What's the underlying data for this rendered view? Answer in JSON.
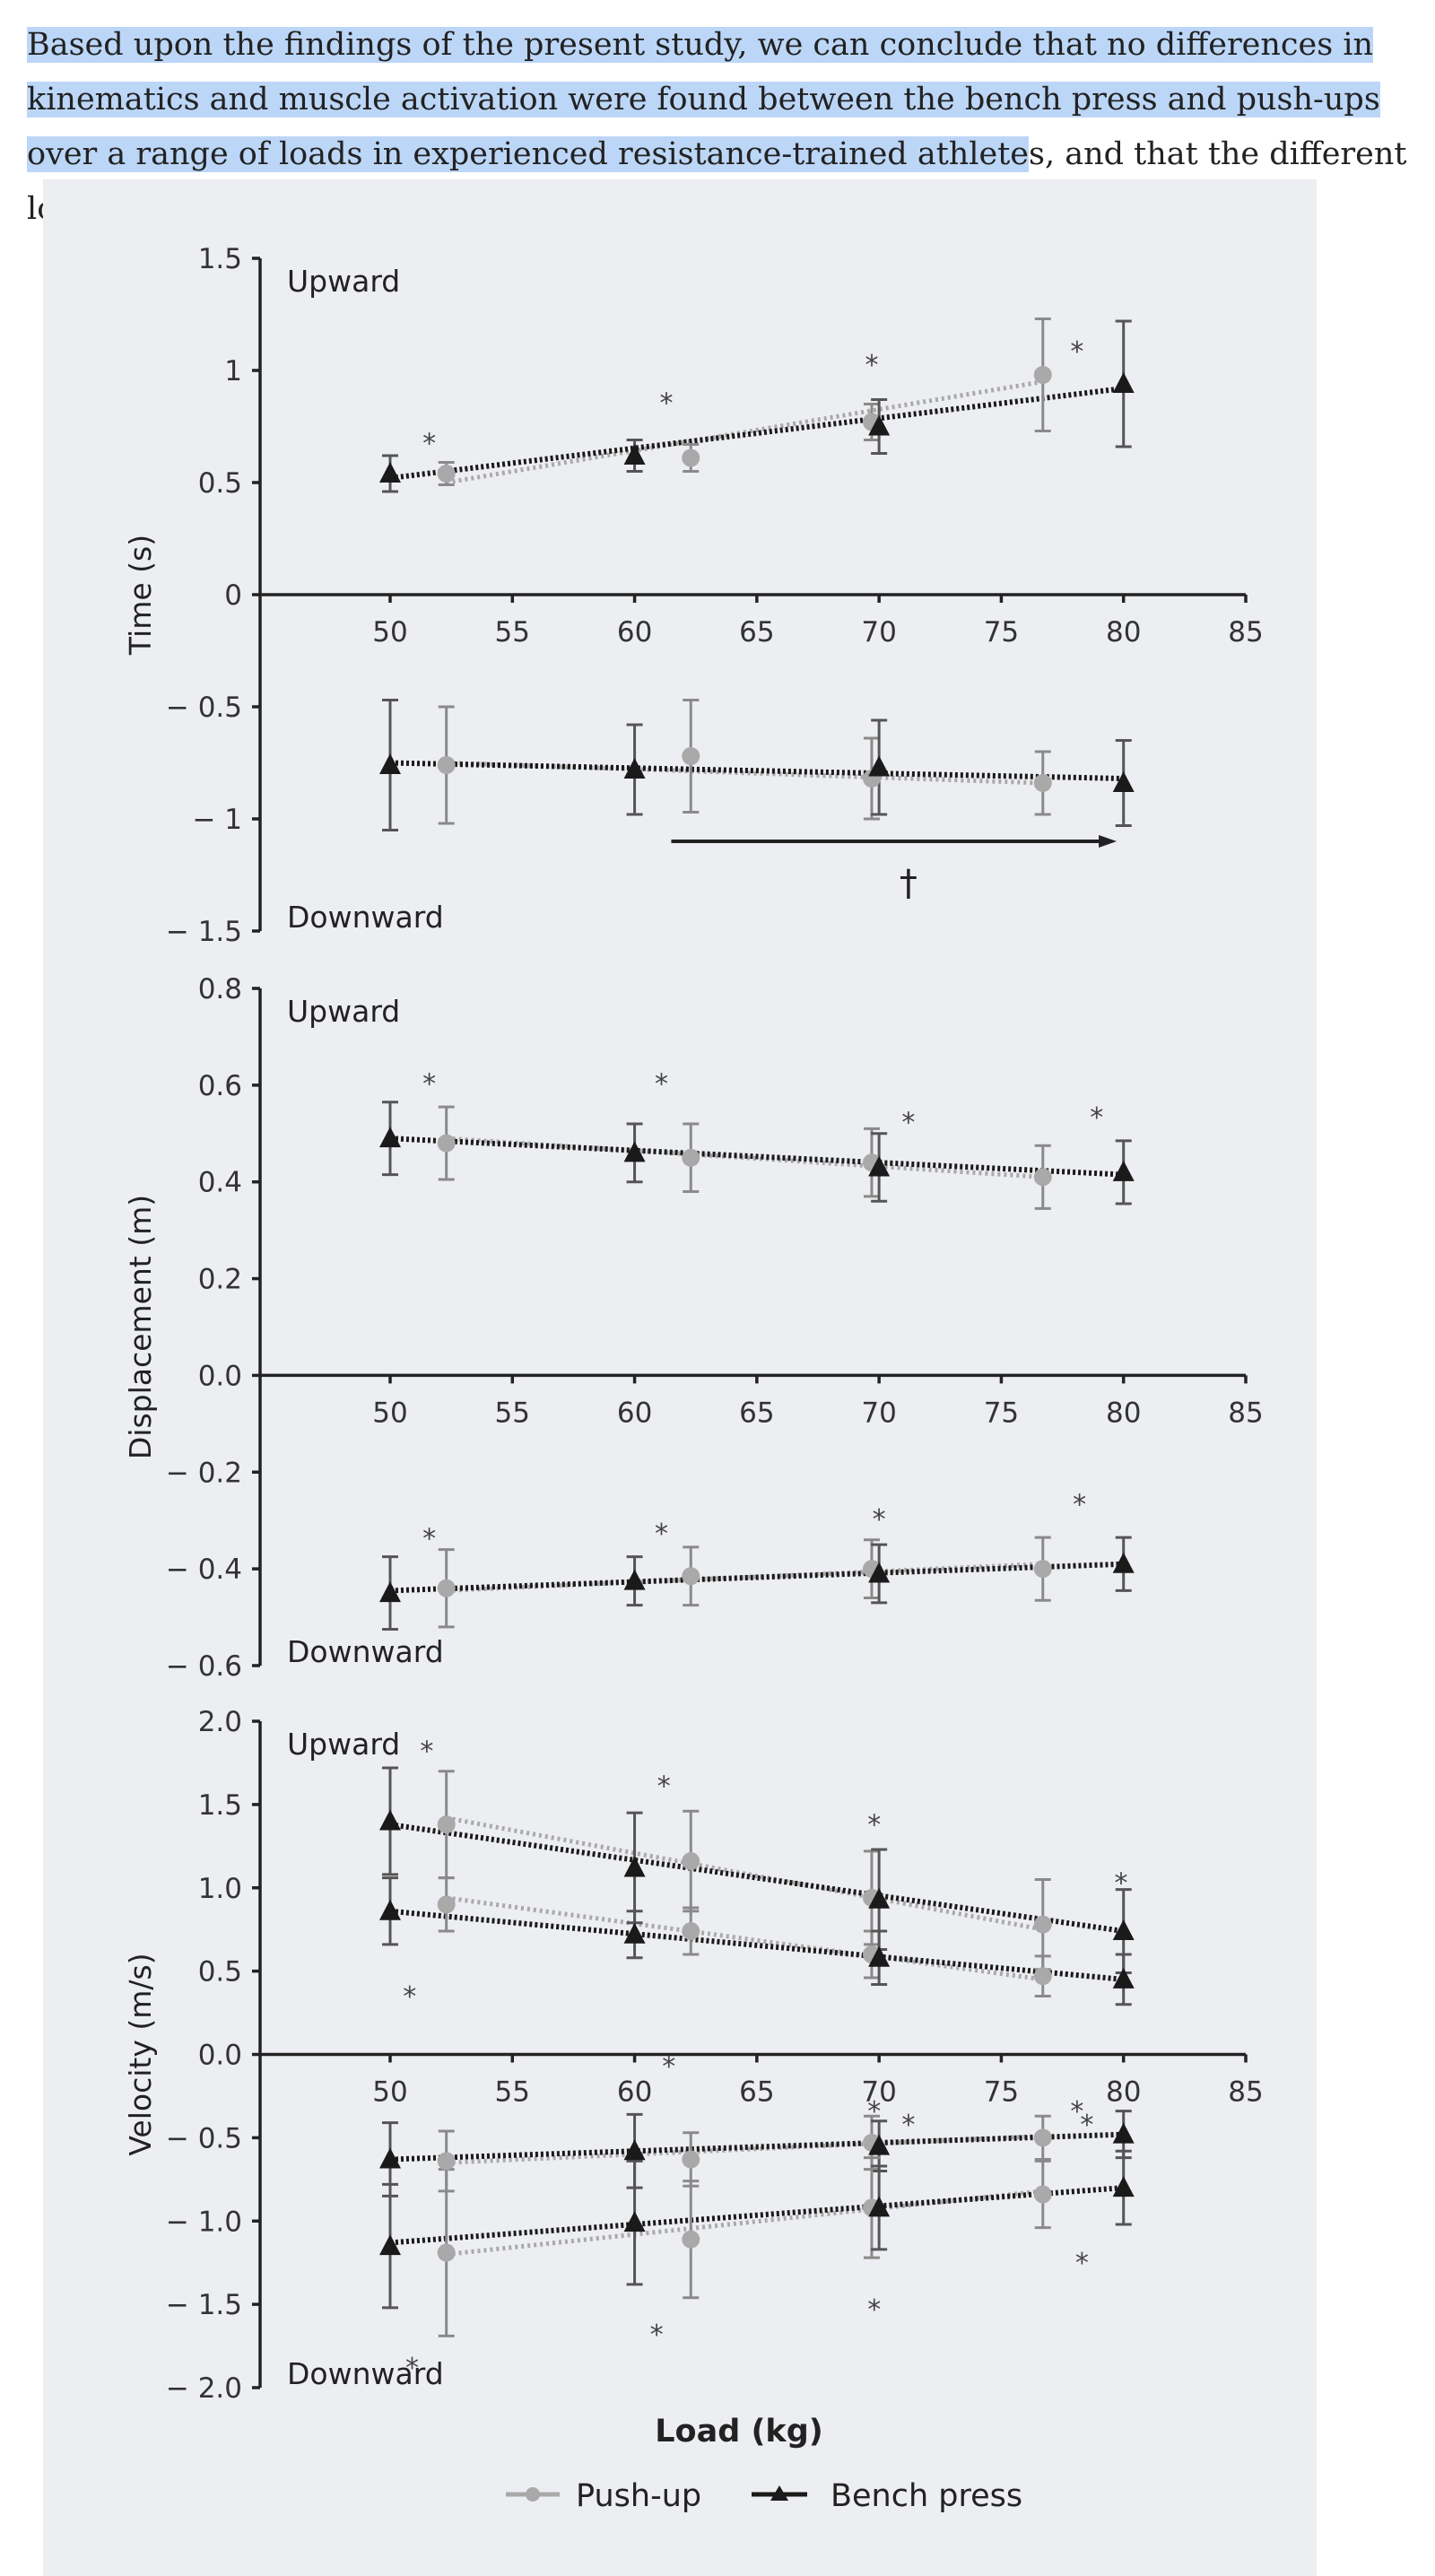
{
  "paragraph": {
    "highlighted": "Based upon the findings of the present study, we can conclude that no differences in kinematics and muscle activation were found between the bench press and push-ups over a range of loads in experienced resistance-trained athlete",
    "rest": "s, and that the different loads had the"
  },
  "colors": {
    "highlight": "#bcd6f7",
    "figure_bg": "#edeef1",
    "pushup": "#a9a9a9",
    "bench": "#1a1a1a"
  },
  "legend": {
    "pushup": "Push-up",
    "bench": "Bench press"
  },
  "x_axis_title": "Load (kg)",
  "chart_data": [
    {
      "type": "line",
      "name": "time",
      "ylabel": "Time (s)",
      "ylim": [
        -1.5,
        1.5
      ],
      "yticks": [
        1.5,
        1,
        0.5,
        0,
        -0.5,
        -1,
        -1.5
      ],
      "ytick_labels": [
        "1.5",
        "1",
        "0.5",
        "0",
        "− 0.5",
        "− 1",
        "− 1.5"
      ],
      "xlim": [
        50,
        85
      ],
      "xticks": [
        50,
        55,
        60,
        65,
        70,
        75,
        80,
        85
      ],
      "top_label": "Upward",
      "bottom_label": "Downward",
      "series": [
        {
          "name": "Push-up",
          "group": "upward",
          "x": [
            52.3,
            62.3,
            69.7,
            76.7
          ],
          "values": [
            0.54,
            0.61,
            0.77,
            0.98
          ],
          "err": [
            0.05,
            0.06,
            0.08,
            0.25
          ],
          "trend": [
            0.5,
            0.95
          ]
        },
        {
          "name": "Bench press",
          "group": "upward",
          "x": [
            50,
            60,
            70,
            80
          ],
          "values": [
            0.54,
            0.62,
            0.75,
            0.94
          ],
          "err": [
            0.08,
            0.07,
            0.12,
            0.28
          ],
          "trend": [
            0.52,
            0.92
          ]
        },
        {
          "name": "Push-up",
          "group": "downward",
          "x": [
            52.3,
            62.3,
            69.7,
            76.7
          ],
          "values": [
            -0.76,
            -0.72,
            -0.82,
            -0.84
          ],
          "err": [
            0.26,
            0.25,
            0.18,
            0.14
          ],
          "trend": [
            -0.75,
            -0.84
          ]
        },
        {
          "name": "Bench press",
          "group": "downward",
          "x": [
            50,
            60,
            70,
            80
          ],
          "values": [
            -0.76,
            -0.78,
            -0.77,
            -0.84
          ],
          "err": [
            0.29,
            0.2,
            0.21,
            0.19
          ],
          "trend": [
            -0.75,
            -0.82
          ]
        }
      ],
      "stars": [
        {
          "x": 51.6,
          "y": 0.69
        },
        {
          "x": 61.3,
          "y": 0.87
        },
        {
          "x": 69.7,
          "y": 1.04
        },
        {
          "x": 78.1,
          "y": 1.1
        }
      ],
      "arrow": {
        "x_start": 61.5,
        "x_end": 79.5,
        "y": -1.1,
        "label": "†"
      }
    },
    {
      "type": "line",
      "name": "displacement",
      "ylabel": "Displacement (m)",
      "ylim": [
        -0.6,
        0.8
      ],
      "yticks": [
        0.8,
        0.6,
        0.4,
        0.2,
        0.0,
        -0.2,
        -0.4,
        -0.6
      ],
      "ytick_labels": [
        "0.8",
        "0.6",
        "0.4",
        "0.2",
        "0.0",
        "− 0.2",
        "− 0.4",
        "− 0.6"
      ],
      "xlim": [
        50,
        85
      ],
      "xticks": [
        50,
        55,
        60,
        65,
        70,
        75,
        80,
        85
      ],
      "top_label": "Upward",
      "bottom_label": "Downward",
      "series": [
        {
          "name": "Push-up",
          "group": "upward",
          "x": [
            52.3,
            62.3,
            69.7,
            76.7
          ],
          "values": [
            0.48,
            0.45,
            0.44,
            0.41
          ],
          "err": [
            0.075,
            0.07,
            0.07,
            0.065
          ],
          "trend": [
            0.49,
            0.41
          ]
        },
        {
          "name": "Bench press",
          "group": "upward",
          "x": [
            50,
            60,
            70,
            80
          ],
          "values": [
            0.49,
            0.46,
            0.43,
            0.42
          ],
          "err": [
            0.075,
            0.06,
            0.07,
            0.065
          ],
          "trend": [
            0.49,
            0.415
          ]
        },
        {
          "name": "Push-up",
          "group": "downward",
          "x": [
            52.3,
            62.3,
            69.7,
            76.7
          ],
          "values": [
            -0.44,
            -0.415,
            -0.4,
            -0.4
          ],
          "err": [
            0.08,
            0.06,
            0.06,
            0.065
          ],
          "trend": [
            -0.445,
            -0.39
          ]
        },
        {
          "name": "Bench press",
          "group": "downward",
          "x": [
            50,
            60,
            70,
            80
          ],
          "values": [
            -0.45,
            -0.425,
            -0.41,
            -0.39
          ],
          "err": [
            0.075,
            0.05,
            0.06,
            0.055
          ],
          "trend": [
            -0.445,
            -0.39
          ]
        }
      ],
      "stars": [
        {
          "x": 51.6,
          "y": 0.61
        },
        {
          "x": 61.1,
          "y": 0.61
        },
        {
          "x": 71.2,
          "y": 0.53
        },
        {
          "x": 78.9,
          "y": 0.54
        },
        {
          "x": 51.6,
          "y": -0.33
        },
        {
          "x": 61.1,
          "y": -0.32
        },
        {
          "x": 70.0,
          "y": -0.29
        },
        {
          "x": 78.2,
          "y": -0.26
        }
      ]
    },
    {
      "type": "line",
      "name": "velocity",
      "ylabel": "Velocity (m/s)",
      "ylim": [
        -2.0,
        2.0
      ],
      "yticks": [
        2.0,
        1.5,
        1.0,
        0.5,
        0.0,
        -0.5,
        -1.0,
        -1.5,
        -2.0
      ],
      "ytick_labels": [
        "2.0",
        "1.5",
        "1.0",
        "0.5",
        "0.0",
        "− 0.5",
        "− 1.0",
        "− 1.5",
        "− 2.0"
      ],
      "xlim": [
        50,
        85
      ],
      "xticks": [
        50,
        55,
        60,
        65,
        70,
        75,
        80,
        85
      ],
      "top_label": "Upward",
      "bottom_label": "Downward",
      "series": [
        {
          "name": "Push-up",
          "group": "upward-peak",
          "x": [
            52.3,
            62.3,
            69.7,
            76.7
          ],
          "values": [
            1.38,
            1.16,
            0.94,
            0.78
          ],
          "err": [
            0.32,
            0.3,
            0.28,
            0.27
          ],
          "trend": [
            1.42,
            0.75
          ]
        },
        {
          "name": "Bench press",
          "group": "upward-peak",
          "x": [
            50,
            60,
            70,
            80
          ],
          "values": [
            1.4,
            1.12,
            0.93,
            0.74
          ],
          "err": [
            0.32,
            0.33,
            0.3,
            0.25
          ],
          "trend": [
            1.38,
            0.74
          ]
        },
        {
          "name": "Push-up",
          "group": "upward-mean",
          "x": [
            52.3,
            62.3,
            69.7,
            76.7
          ],
          "values": [
            0.9,
            0.74,
            0.6,
            0.47
          ],
          "err": [
            0.16,
            0.14,
            0.14,
            0.12
          ],
          "trend": [
            0.94,
            0.45
          ]
        },
        {
          "name": "Bench press",
          "group": "upward-mean",
          "x": [
            50,
            60,
            70,
            80
          ],
          "values": [
            0.86,
            0.72,
            0.58,
            0.45
          ],
          "err": [
            0.2,
            0.14,
            0.16,
            0.15
          ],
          "trend": [
            0.86,
            0.45
          ]
        },
        {
          "name": "Push-up",
          "group": "downward-mean",
          "x": [
            52.3,
            62.3,
            69.7,
            76.7
          ],
          "values": [
            -0.64,
            -0.63,
            -0.53,
            -0.5
          ],
          "err": [
            0.18,
            0.16,
            0.16,
            0.13
          ],
          "trend": [
            -0.65,
            -0.49
          ]
        },
        {
          "name": "Bench press",
          "group": "downward-mean",
          "x": [
            50,
            60,
            70,
            80
          ],
          "values": [
            -0.63,
            -0.58,
            -0.55,
            -0.48
          ],
          "err": [
            0.22,
            0.22,
            0.15,
            0.14
          ],
          "trend": [
            -0.63,
            -0.48
          ]
        },
        {
          "name": "Push-up",
          "group": "downward-peak",
          "x": [
            52.3,
            62.3,
            69.7,
            76.7
          ],
          "values": [
            -1.19,
            -1.11,
            -0.92,
            -0.84
          ],
          "err": [
            0.5,
            0.35,
            0.3,
            0.2
          ],
          "trend": [
            -1.2,
            -0.82
          ]
        },
        {
          "name": "Bench press",
          "group": "downward-peak",
          "x": [
            50,
            60,
            70,
            80
          ],
          "values": [
            -1.15,
            -1.01,
            -0.92,
            -0.8
          ],
          "err": [
            0.37,
            0.37,
            0.25,
            0.22
          ],
          "trend": [
            -1.13,
            -0.8
          ]
        }
      ],
      "stars": [
        {
          "x": 51.5,
          "y": 1.84
        },
        {
          "x": 61.2,
          "y": 1.63
        },
        {
          "x": 69.8,
          "y": 1.4
        },
        {
          "x": 79.9,
          "y": 1.05
        },
        {
          "x": 50.8,
          "y": 0.37
        },
        {
          "x": 61.4,
          "y": -0.05
        },
        {
          "x": 69.8,
          "y": -0.32
        },
        {
          "x": 78.1,
          "y": -0.32
        },
        {
          "x": 71.2,
          "y": -0.4
        },
        {
          "x": 78.5,
          "y": -0.4
        },
        {
          "x": 78.3,
          "y": -1.23
        },
        {
          "x": 69.8,
          "y": -1.51
        },
        {
          "x": 60.9,
          "y": -1.66
        },
        {
          "x": 50.9,
          "y": -1.86
        }
      ]
    }
  ]
}
